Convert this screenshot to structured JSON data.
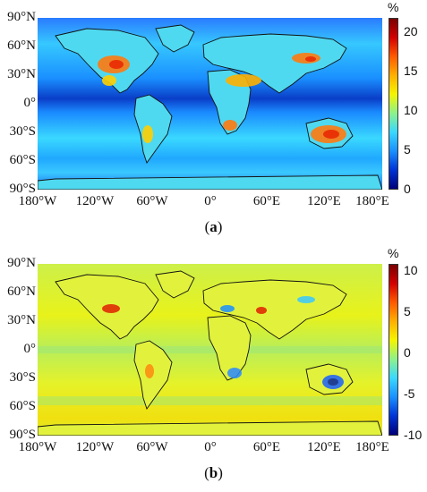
{
  "panel_a": {
    "label_open": "(",
    "label_letter": "a",
    "label_close": ")",
    "unit": "%",
    "colorbar_ticks": [
      "20",
      "15",
      "10",
      "5",
      "0"
    ],
    "colormap": [
      "#7a0000",
      "#d40000",
      "#ff5a00",
      "#ffb000",
      "#f5f500",
      "#8cf28c",
      "#3ad8ff",
      "#1a90ff",
      "#0033d6",
      "#00007a"
    ]
  },
  "panel_b": {
    "label_open": "(",
    "label_letter": "b",
    "label_close": ")",
    "unit": "%",
    "colorbar_ticks": [
      "10",
      "5",
      "0",
      "-5",
      "-10"
    ],
    "colormap": [
      "#7a0000",
      "#d40000",
      "#ff5a00",
      "#ffb000",
      "#f5f500",
      "#8cf28c",
      "#3ad8ff",
      "#1a90ff",
      "#0033d6",
      "#00007a"
    ]
  },
  "axes": {
    "lat_labels": [
      "90°N",
      "60°N",
      "30°N",
      "0°",
      "30°S",
      "60°S",
      "90°S"
    ],
    "lon_labels": [
      "180°W",
      "120°W",
      "60°W",
      "0°",
      "60°E",
      "120°E",
      "180°E"
    ]
  }
}
